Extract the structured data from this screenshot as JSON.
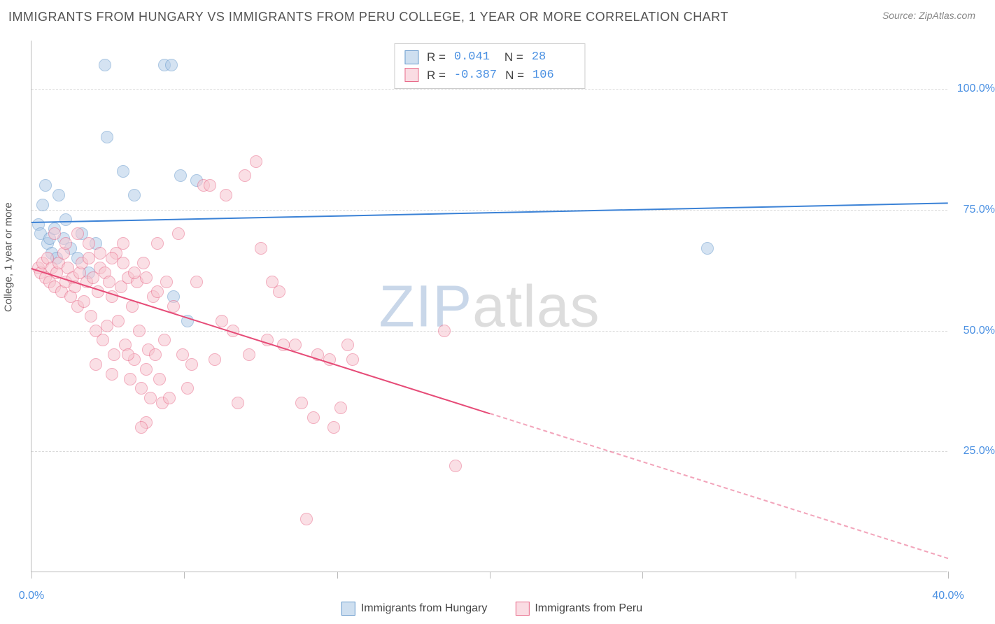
{
  "title": "IMMIGRANTS FROM HUNGARY VS IMMIGRANTS FROM PERU COLLEGE, 1 YEAR OR MORE CORRELATION CHART",
  "source": "Source: ZipAtlas.com",
  "yaxis_title": "College, 1 year or more",
  "watermark": {
    "part1": "ZIP",
    "part2": "atlas"
  },
  "chart": {
    "type": "scatter",
    "xlim": [
      0,
      40
    ],
    "ylim": [
      0,
      110
    ],
    "yticks": [
      25,
      50,
      75,
      100
    ],
    "ytick_labels": [
      "25.0%",
      "50.0%",
      "75.0%",
      "100.0%"
    ],
    "xticks": [
      0,
      40
    ],
    "xtick_labels": [
      "0.0%",
      "40.0%"
    ],
    "xtick_marks": [
      0,
      6.67,
      13.33,
      20,
      26.67,
      33.33,
      40
    ],
    "grid_color": "#d9d9d9",
    "axis_color": "#bbbbbb",
    "background_color": "#ffffff",
    "label_color": "#4a90e2",
    "label_fontsize": 16,
    "marker_radius": 9,
    "marker_opacity": 0.55,
    "marker_stroke_width": 1.5,
    "line_width": 2.5
  },
  "series": [
    {
      "name": "Immigrants from Hungary",
      "fill_color": "#b3cde8",
      "stroke_color": "#6699cc",
      "line_color": "#3b82d6",
      "legend_swatch_fill": "#cedff0",
      "legend_swatch_stroke": "#6699cc",
      "R": "0.041",
      "N": "28",
      "points": [
        [
          0.3,
          72
        ],
        [
          0.4,
          70
        ],
        [
          0.5,
          76
        ],
        [
          0.6,
          80
        ],
        [
          0.7,
          68
        ],
        [
          0.8,
          69
        ],
        [
          0.9,
          66
        ],
        [
          1.0,
          71
        ],
        [
          1.1,
          65
        ],
        [
          1.2,
          78
        ],
        [
          1.4,
          69
        ],
        [
          1.5,
          73
        ],
        [
          1.7,
          67
        ],
        [
          2.0,
          65
        ],
        [
          2.2,
          70
        ],
        [
          2.5,
          62
        ],
        [
          2.8,
          68
        ],
        [
          3.2,
          105
        ],
        [
          3.3,
          90
        ],
        [
          4.0,
          83
        ],
        [
          4.5,
          78
        ],
        [
          5.8,
          105
        ],
        [
          6.1,
          105
        ],
        [
          6.5,
          82
        ],
        [
          7.2,
          81
        ],
        [
          6.8,
          52
        ],
        [
          6.2,
          57
        ],
        [
          29.5,
          67
        ]
      ],
      "trend": {
        "x1": 0,
        "y1": 72.5,
        "x2": 40,
        "y2": 76.5,
        "dash_after_x": 40
      }
    },
    {
      "name": "Immigrants from Peru",
      "fill_color": "#f7c6d0",
      "stroke_color": "#e86b8a",
      "line_color": "#e64b77",
      "legend_swatch_fill": "#fadce3",
      "legend_swatch_stroke": "#e86b8a",
      "R": "-0.387",
      "N": "106",
      "points": [
        [
          0.3,
          63
        ],
        [
          0.4,
          62
        ],
        [
          0.5,
          64
        ],
        [
          0.6,
          61
        ],
        [
          0.7,
          65
        ],
        [
          0.8,
          60
        ],
        [
          0.9,
          63
        ],
        [
          1.0,
          59
        ],
        [
          1.1,
          62
        ],
        [
          1.2,
          64
        ],
        [
          1.3,
          58
        ],
        [
          1.4,
          66
        ],
        [
          1.5,
          60
        ],
        [
          1.6,
          63
        ],
        [
          1.7,
          57
        ],
        [
          1.8,
          61
        ],
        [
          1.9,
          59
        ],
        [
          2.0,
          55
        ],
        [
          2.1,
          62
        ],
        [
          2.2,
          64
        ],
        [
          2.3,
          56
        ],
        [
          2.4,
          60
        ],
        [
          2.5,
          65
        ],
        [
          2.6,
          53
        ],
        [
          2.7,
          61
        ],
        [
          2.8,
          50
        ],
        [
          2.9,
          58
        ],
        [
          3.0,
          63
        ],
        [
          3.1,
          48
        ],
        [
          3.2,
          62
        ],
        [
          3.3,
          51
        ],
        [
          3.4,
          60
        ],
        [
          3.5,
          57
        ],
        [
          3.6,
          45
        ],
        [
          3.7,
          66
        ],
        [
          3.8,
          52
        ],
        [
          3.9,
          59
        ],
        [
          4.0,
          68
        ],
        [
          4.1,
          47
        ],
        [
          4.2,
          61
        ],
        [
          4.3,
          40
        ],
        [
          4.4,
          55
        ],
        [
          4.5,
          44
        ],
        [
          4.6,
          60
        ],
        [
          4.7,
          50
        ],
        [
          4.8,
          38
        ],
        [
          4.9,
          64
        ],
        [
          5.0,
          42
        ],
        [
          5.1,
          46
        ],
        [
          5.2,
          36
        ],
        [
          5.3,
          57
        ],
        [
          5.4,
          45
        ],
        [
          5.5,
          68
        ],
        [
          5.6,
          40
        ],
        [
          5.7,
          35
        ],
        [
          5.8,
          48
        ],
        [
          5.9,
          60
        ],
        [
          6.0,
          36
        ],
        [
          6.2,
          55
        ],
        [
          6.4,
          70
        ],
        [
          6.6,
          45
        ],
        [
          6.8,
          38
        ],
        [
          7.0,
          43
        ],
        [
          7.2,
          60
        ],
        [
          7.5,
          80
        ],
        [
          7.8,
          80
        ],
        [
          8.0,
          44
        ],
        [
          8.3,
          52
        ],
        [
          8.5,
          78
        ],
        [
          8.8,
          50
        ],
        [
          9.0,
          35
        ],
        [
          9.3,
          82
        ],
        [
          9.5,
          45
        ],
        [
          9.8,
          85
        ],
        [
          10.0,
          67
        ],
        [
          10.3,
          48
        ],
        [
          10.5,
          60
        ],
        [
          10.8,
          58
        ],
        [
          11.0,
          47
        ],
        [
          11.5,
          47
        ],
        [
          11.8,
          35
        ],
        [
          12.0,
          11
        ],
        [
          12.3,
          32
        ],
        [
          12.5,
          45
        ],
        [
          13.0,
          44
        ],
        [
          13.2,
          30
        ],
        [
          13.5,
          34
        ],
        [
          13.8,
          47
        ],
        [
          14.0,
          44
        ],
        [
          18.0,
          50
        ],
        [
          18.5,
          22
        ],
        [
          1.0,
          70
        ],
        [
          1.5,
          68
        ],
        [
          2.0,
          70
        ],
        [
          2.5,
          68
        ],
        [
          3.0,
          66
        ],
        [
          3.5,
          65
        ],
        [
          4.0,
          64
        ],
        [
          4.5,
          62
        ],
        [
          5.0,
          61
        ],
        [
          5.5,
          58
        ],
        [
          2.8,
          43
        ],
        [
          3.5,
          41
        ],
        [
          4.2,
          45
        ],
        [
          5.0,
          31
        ],
        [
          4.8,
          30
        ]
      ],
      "trend": {
        "x1": 0,
        "y1": 63,
        "x2": 20,
        "y2": 33,
        "dash_after_x": 20,
        "dash_end_x": 40,
        "dash_end_y": 3
      }
    }
  ],
  "corr_legend_labels": {
    "R": "R =",
    "N": "N ="
  },
  "bottom_legend": [
    {
      "label": "Immigrants from Hungary",
      "fill": "#cedff0",
      "stroke": "#6699cc"
    },
    {
      "label": "Immigrants from Peru",
      "fill": "#fadce3",
      "stroke": "#e86b8a"
    }
  ]
}
